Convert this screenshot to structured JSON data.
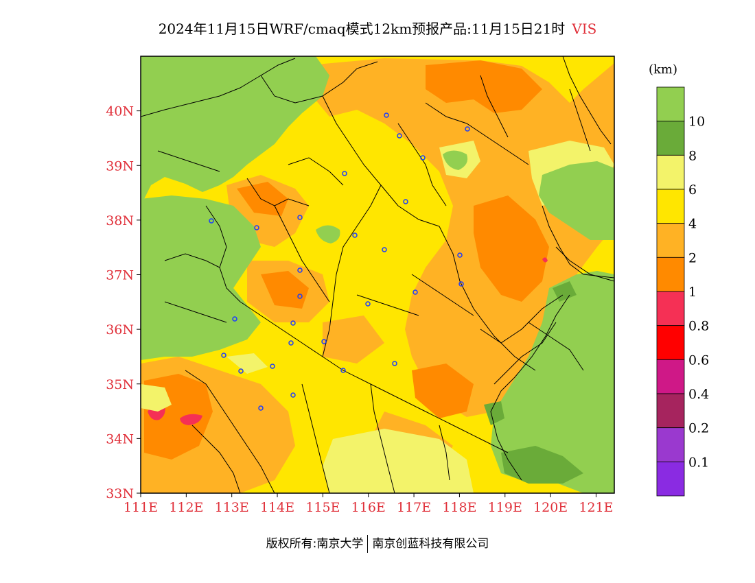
{
  "header": {
    "title": "2024年11月15日WRF/cmaq模式12km预报产品:11月15日21时",
    "variable": "VIS"
  },
  "map": {
    "lat_labels": [
      "40N",
      "39N",
      "38N",
      "37N",
      "36N",
      "35N",
      "34N",
      "33N"
    ],
    "lon_labels": [
      "111E",
      "112E",
      "113E",
      "114E",
      "115E",
      "116E",
      "117E",
      "118E",
      "119E",
      "120E",
      "121E"
    ],
    "lat_range": [
      33,
      41
    ],
    "lon_range": [
      111,
      121.4
    ],
    "label_color": "#e0303a"
  },
  "legend": {
    "unit": "(km)",
    "levels": [
      "10",
      "8",
      "6",
      "4",
      "2",
      "1",
      "0.8",
      "0.6",
      "0.4",
      "0.2",
      "0.1"
    ],
    "colors": [
      "#92cf50",
      "#6aab39",
      "#f3f36a",
      "#ffe600",
      "#ffb224",
      "#ff8a00",
      "#f53055",
      "#ff0000",
      "#cf1887",
      "#a6245e",
      "#9a39cf",
      "#8a2be2"
    ]
  },
  "footer": {
    "copyright": "版权所有:南京大学",
    "company": "南京创蓝科技有限公司"
  }
}
